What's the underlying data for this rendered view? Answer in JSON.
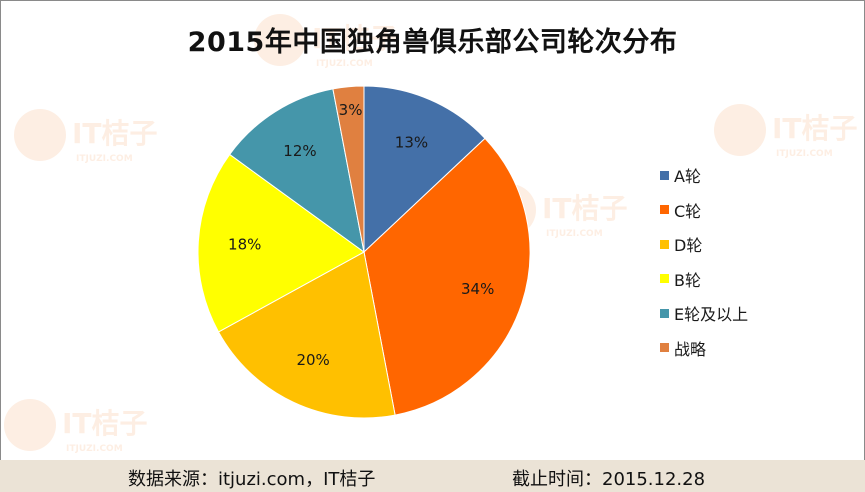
{
  "chart_data": {
    "type": "pie",
    "title": "2015年中国独角兽俱乐部公司轮次分布",
    "categories": [
      "A轮",
      "C轮",
      "D轮",
      "B轮",
      "E轮及以上",
      "战略"
    ],
    "values": [
      13,
      34,
      20,
      18,
      12,
      3
    ],
    "data_labels": [
      "13%",
      "34%",
      "20%",
      "18%",
      "12%",
      "3%"
    ],
    "colors": [
      "#4470a8",
      "#ff6600",
      "#ffc000",
      "#ffff00",
      "#4596aa",
      "#e08040"
    ],
    "start_angle_deg": 0,
    "direction": "clockwise",
    "legend_position": "right"
  },
  "footer": {
    "source": "数据来源：itjuzi.com，IT桔子",
    "date": "截止时间：2015.12.28"
  },
  "watermark": {
    "text": "IT桔子",
    "subtext": "ITJUZI.COM"
  }
}
